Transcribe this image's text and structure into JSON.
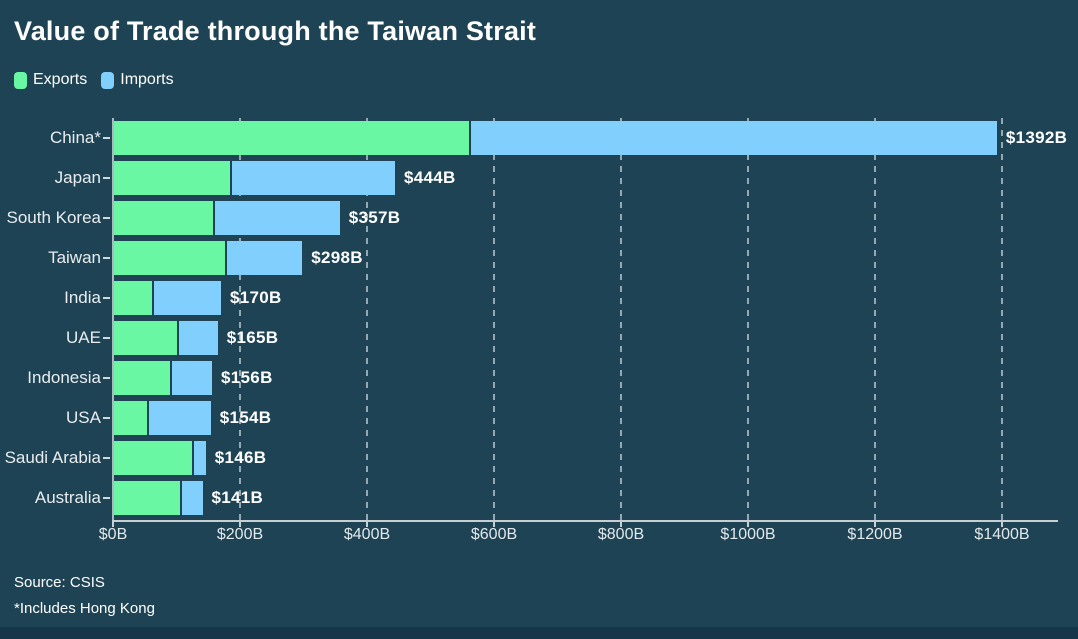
{
  "title": "Value of Trade through the Taiwan Strait",
  "legend": {
    "items": [
      {
        "label": "Exports",
        "color": "#6af7a3"
      },
      {
        "label": "Imports",
        "color": "#80cffc"
      }
    ]
  },
  "footer": {
    "source": "Source: CSIS",
    "note": "*Includes Hong Kong"
  },
  "colors": {
    "background": "#1d4354",
    "exports": "#6af7a3",
    "imports": "#80cffc",
    "gridline": "#a9bac2",
    "axis": "#c6cfd4",
    "text": "#ffffff",
    "bottom_strip": "#16374a"
  },
  "chart_data": {
    "type": "bar",
    "orientation": "horizontal",
    "stacked": true,
    "title": "Value of Trade through the Taiwan Strait",
    "xlabel": "",
    "ylabel": "",
    "xlim": [
      0,
      1480
    ],
    "grid": "dashed-vertical",
    "legend_position": "top-left",
    "categories": [
      "China*",
      "Japan",
      "South Korea",
      "Taiwan",
      "India",
      "UAE",
      "Indonesia",
      "USA",
      "Saudi Arabia",
      "Australia"
    ],
    "series": [
      {
        "name": "Exports",
        "color": "#6af7a3",
        "values": [
          560,
          185,
          158,
          177,
          61,
          101,
          89,
          53,
          124,
          106
        ]
      },
      {
        "name": "Imports",
        "color": "#80cffc",
        "values": [
          832,
          259,
          199,
          121,
          109,
          64,
          67,
          101,
          22,
          35
        ]
      }
    ],
    "totals": [
      1392,
      444,
      357,
      298,
      170,
      165,
      156,
      154,
      146,
      141
    ],
    "total_labels": [
      "$1392B",
      "$444B",
      "$357B",
      "$298B",
      "$170B",
      "$165B",
      "$156B",
      "$154B",
      "$146B",
      "$141B"
    ],
    "x_ticks": [
      {
        "value": 0,
        "label": "$0B"
      },
      {
        "value": 200,
        "label": "$200B"
      },
      {
        "value": 400,
        "label": "$400B"
      },
      {
        "value": 600,
        "label": "$600B"
      },
      {
        "value": 800,
        "label": "$800B"
      },
      {
        "value": 1000,
        "label": "$1000B"
      },
      {
        "value": 1200,
        "label": "$1200B"
      },
      {
        "value": 1400,
        "label": "$1400B"
      }
    ]
  }
}
